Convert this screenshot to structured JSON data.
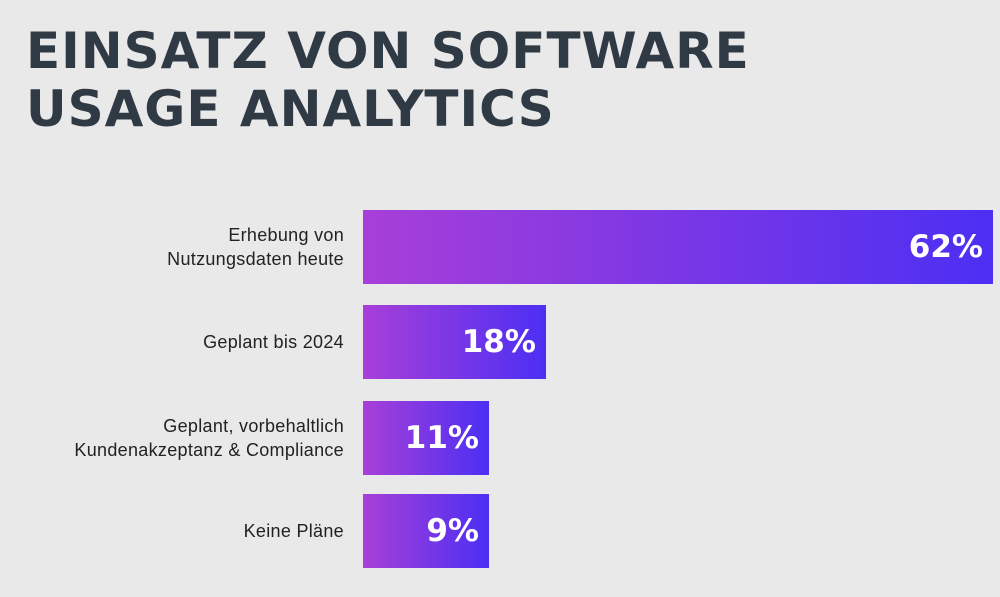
{
  "chart_data": {
    "type": "bar",
    "orientation": "horizontal",
    "title_lines": [
      "EINSATZ VON SOFTWARE",
      "USAGE ANALYTICS"
    ],
    "categories": [
      [
        "Erhebung von",
        "Nutzungsdaten heute"
      ],
      [
        "Geplant bis 2024"
      ],
      [
        "Geplant, vorbehaltlich",
        "Kundenakzeptanz & Compliance"
      ],
      [
        "Keine Pläne"
      ]
    ],
    "values": [
      62,
      18,
      11,
      9
    ],
    "value_labels": [
      "62%",
      "18%",
      "11%",
      "9%"
    ],
    "unit": "%",
    "grid": false,
    "legend": "none",
    "colors": {
      "gradient_start": "#a83fd8",
      "gradient_end": "#4c2ff3",
      "title": "#2f3a44",
      "background": "#e9e9ea"
    }
  }
}
